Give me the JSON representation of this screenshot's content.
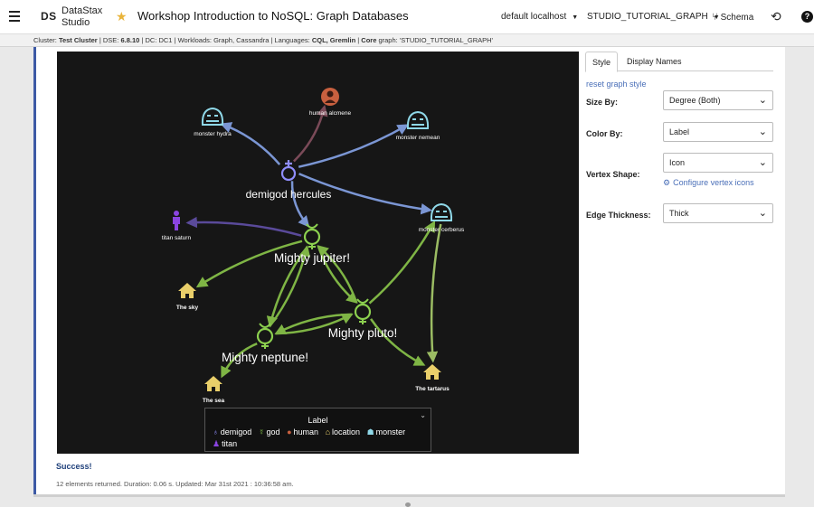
{
  "header": {
    "logo": "DS",
    "brand_line1": "DataStax",
    "brand_line2": "Studio",
    "notebook_title": "Workshop Introduction to NoSQL: Graph Databases",
    "connection": "default localhost",
    "graph": "STUDIO_TUTORIAL_GRAPH",
    "schema_label": "Schema",
    "help_label": "?"
  },
  "info": {
    "cluster_k": "Cluster:",
    "cluster_v": "Test Cluster",
    "dse_k": "DSE:",
    "dse_v": "6.8.10",
    "dc_k": "DC:",
    "dc_v": "DC1",
    "workloads_k": "Workloads:",
    "workloads_v": "Graph, Cassandra",
    "languages_k": "Languages:",
    "languages_v": "CQL, Gremlin",
    "core_k": "Core",
    "core_v": "graph: 'STUDIO_TUTORIAL_GRAPH'"
  },
  "graph": {
    "nodes": [
      {
        "id": "hercules",
        "label": "demigod hercules",
        "type": "demigod",
        "big": true
      },
      {
        "id": "alcmene",
        "label": "human alcmene",
        "type": "human"
      },
      {
        "id": "hydra",
        "label": "monster hydra",
        "type": "monster"
      },
      {
        "id": "nemean",
        "label": "monster nemean",
        "type": "monster"
      },
      {
        "id": "cerberus",
        "label": "monster cerberus",
        "type": "monster"
      },
      {
        "id": "saturn",
        "label": "titan saturn",
        "type": "titan"
      },
      {
        "id": "jupiter",
        "label": "Mighty jupiter!",
        "type": "god",
        "big": true
      },
      {
        "id": "pluto",
        "label": "Mighty pluto!",
        "type": "god",
        "big": true
      },
      {
        "id": "neptune",
        "label": "Mighty neptune!",
        "type": "god",
        "big": true
      },
      {
        "id": "sky",
        "label": "The sky",
        "type": "location"
      },
      {
        "id": "sea",
        "label": "The sea",
        "type": "location"
      },
      {
        "id": "tartarus",
        "label": "The tartarus",
        "type": "location"
      }
    ],
    "edges": [
      [
        "hercules",
        "alcmene"
      ],
      [
        "hercules",
        "hydra"
      ],
      [
        "hercules",
        "nemean"
      ],
      [
        "hercules",
        "cerberus"
      ],
      [
        "hercules",
        "jupiter"
      ],
      [
        "jupiter",
        "saturn"
      ],
      [
        "jupiter",
        "sky"
      ],
      [
        "jupiter",
        "pluto"
      ],
      [
        "pluto",
        "jupiter"
      ],
      [
        "jupiter",
        "neptune"
      ],
      [
        "neptune",
        "jupiter"
      ],
      [
        "pluto",
        "neptune"
      ],
      [
        "neptune",
        "pluto"
      ],
      [
        "neptune",
        "sea"
      ],
      [
        "pluto",
        "tartarus"
      ],
      [
        "pluto",
        "cerberus"
      ],
      [
        "cerberus",
        "tartarus"
      ]
    ]
  },
  "legend": {
    "title": "Label",
    "items": [
      {
        "label": "demigod",
        "color": "#8f8dfc",
        "glyph": "♁"
      },
      {
        "label": "god",
        "color": "#8cd04f",
        "glyph": "☿"
      },
      {
        "label": "human",
        "color": "#c8603f",
        "glyph": "●"
      },
      {
        "label": "location",
        "color": "#e9cf6a",
        "glyph": "⌂"
      },
      {
        "label": "monster",
        "color": "#8fd8e8",
        "glyph": "☗"
      },
      {
        "label": "titan",
        "color": "#8a44e0",
        "glyph": "♟"
      }
    ]
  },
  "colors": {
    "demigod": "#8f8dfc",
    "god": "#8cd04f",
    "human": "#c8603f",
    "location": "#e9cf6a",
    "monster": "#8fd8e8",
    "titan": "#8a44e0",
    "accent": "#3d5aa5",
    "link": "#4a6fb8"
  },
  "panel": {
    "tab_style": "Style",
    "tab_display": "Display Names",
    "reset": "reset graph style",
    "size_label": "Size By:",
    "size_value": "Degree (Both)",
    "color_label": "Color By:",
    "color_value": "Label",
    "shape_label": "Vertex Shape:",
    "shape_value": "Icon",
    "configure": "Configure vertex icons",
    "edge_label": "Edge Thickness:",
    "edge_value": "Thick"
  },
  "result": {
    "status": "Success!",
    "stats": "12 elements returned. Duration: 0.06 s. Updated: Mar 31st 2021 : 10:36:58 am."
  }
}
